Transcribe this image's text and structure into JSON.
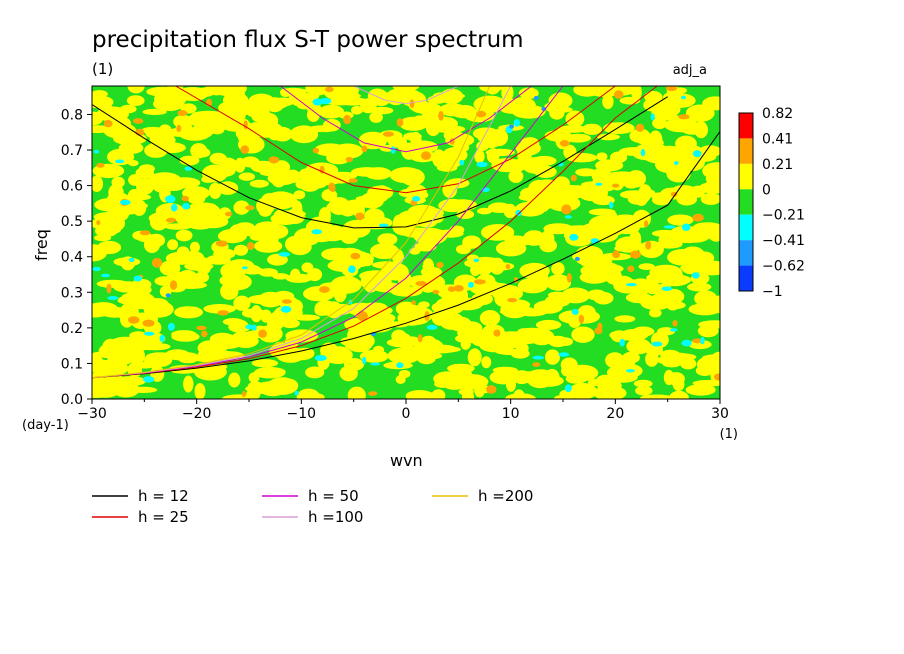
{
  "chart_data": {
    "type": "heatmap",
    "title": "precipitation flux S-T power spectrum",
    "subtitle_units": "(1)",
    "tag": "adj_a",
    "xlabel": "wvn",
    "xunits": "(1)",
    "ylabel": "freq",
    "yunits": "(day-1)",
    "xlim": [
      -30,
      30
    ],
    "ylim": [
      0.0,
      0.88
    ],
    "xticks": [
      -30,
      -20,
      -10,
      0,
      10,
      20,
      30
    ],
    "xtick_labels": [
      "−30",
      "−20",
      "−10",
      "0",
      "10",
      "20",
      "30"
    ],
    "yticks": [
      0.0,
      0.1,
      0.2,
      0.3,
      0.4,
      0.5,
      0.6,
      0.7,
      0.8
    ],
    "ytick_labels": [
      "0.0",
      "0.1",
      "0.2",
      "0.3",
      "0.4",
      "0.5",
      "0.6",
      "0.7",
      "0.8"
    ],
    "colorbar": {
      "labels": [
        "0.82",
        "0.41",
        "0.21",
        "0",
        "−0.21",
        "−0.41",
        "−0.62",
        "−1"
      ],
      "colors": [
        "#ff0000",
        "#ffa500",
        "#ffff00",
        "#22dd22",
        "#00ffff",
        "#1e9bff",
        "#0a3cff"
      ]
    },
    "field_description": "noisy anomaly field mostly between -0.21 and 0.21 (yellow/green) with scattered orange and cyan patches",
    "curves": [
      {
        "name": "h = 12",
        "color": "#000000",
        "branches": [
          {
            "points": [
              [
                -30,
                0.828
              ],
              [
                -25,
                0.733
              ],
              [
                -20,
                0.643
              ],
              [
                -15,
                0.566
              ],
              [
                -10,
                0.51
              ],
              [
                -5,
                0.481
              ],
              [
                0,
                0.484
              ],
              [
                5,
                0.52
              ],
              [
                10,
                0.585
              ],
              [
                15,
                0.668
              ],
              [
                20,
                0.758
              ],
              [
                25,
                0.85
              ]
            ]
          },
          {
            "points": [
              [
                -30,
                0.06
              ],
              [
                -25,
                0.071
              ],
              [
                -20,
                0.087
              ],
              [
                -15,
                0.107
              ],
              [
                -10,
                0.135
              ],
              [
                -5,
                0.17
              ],
              [
                0,
                0.213
              ],
              [
                5,
                0.264
              ],
              [
                10,
                0.325
              ],
              [
                15,
                0.393
              ],
              [
                20,
                0.466
              ],
              [
                25,
                0.545
              ],
              [
                30,
                0.752
              ]
            ]
          }
        ]
      },
      {
        "name": "h = 25",
        "color": "#dd0000",
        "branches": [
          {
            "points": [
              [
                -22,
                0.88
              ],
              [
                -15,
                0.76
              ],
              [
                -10,
                0.665
              ],
              [
                -5,
                0.6
              ],
              [
                0,
                0.58
              ],
              [
                5,
                0.605
              ],
              [
                10,
                0.675
              ],
              [
                15,
                0.77
              ],
              [
                20,
                0.88
              ]
            ]
          },
          {
            "points": [
              [
                -30,
                0.06
              ],
              [
                -25,
                0.072
              ],
              [
                -20,
                0.09
              ],
              [
                -15,
                0.113
              ],
              [
                -10,
                0.15
              ],
              [
                -5,
                0.205
              ],
              [
                0,
                0.283
              ],
              [
                5,
                0.382
              ],
              [
                10,
                0.5
              ],
              [
                15,
                0.64
              ],
              [
                20,
                0.79
              ],
              [
                24,
                0.88
              ]
            ]
          }
        ]
      },
      {
        "name": "h = 50",
        "color": "#d000d0",
        "branches": [
          {
            "points": [
              [
                -12,
                0.88
              ],
              [
                -8,
                0.79
              ],
              [
                -4,
                0.72
              ],
              [
                0,
                0.695
              ],
              [
                4,
                0.72
              ],
              [
                8,
                0.79
              ],
              [
                12,
                0.88
              ]
            ]
          },
          {
            "points": [
              [
                -30,
                0.06
              ],
              [
                -25,
                0.073
              ],
              [
                -20,
                0.092
              ],
              [
                -15,
                0.118
              ],
              [
                -10,
                0.16
              ],
              [
                -5,
                0.23
              ],
              [
                0,
                0.34
              ],
              [
                5,
                0.5
              ],
              [
                10,
                0.69
              ],
              [
                15,
                0.88
              ]
            ]
          }
        ]
      },
      {
        "name": "h =100",
        "color": "#d9a0d9",
        "branches": [
          {
            "points": [
              [
                -5,
                0.88
              ],
              [
                -2,
                0.84
              ],
              [
                0,
                0.83
              ],
              [
                2,
                0.84
              ],
              [
                5,
                0.88
              ]
            ]
          },
          {
            "points": [
              [
                -30,
                0.06
              ],
              [
                -25,
                0.074
              ],
              [
                -20,
                0.094
              ],
              [
                -15,
                0.122
              ],
              [
                -10,
                0.17
              ],
              [
                -5,
                0.255
              ],
              [
                0,
                0.4
              ],
              [
                5,
                0.6
              ],
              [
                10,
                0.88
              ]
            ]
          }
        ]
      },
      {
        "name": "h =200",
        "color": "#e6c000",
        "branches": [
          {
            "points": [
              [
                -30,
                0.06
              ],
              [
                -25,
                0.075
              ],
              [
                -20,
                0.096
              ],
              [
                -15,
                0.127
              ],
              [
                -10,
                0.18
              ],
              [
                -5,
                0.28
              ],
              [
                0,
                0.44
              ],
              [
                5,
                0.68
              ],
              [
                8,
                0.88
              ]
            ]
          }
        ]
      }
    ]
  }
}
